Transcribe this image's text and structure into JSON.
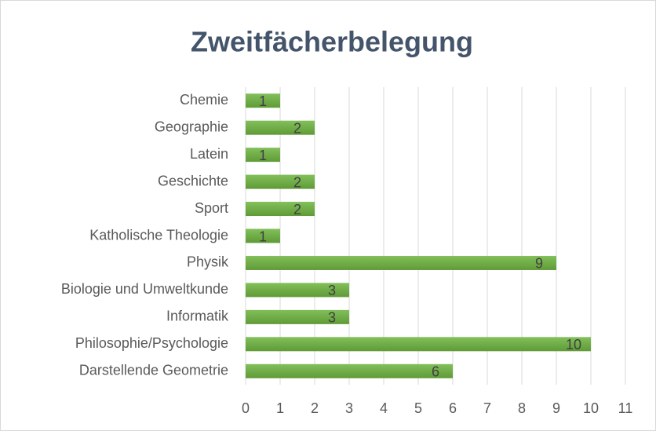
{
  "chart_data": {
    "type": "bar",
    "orientation": "horizontal",
    "title": "Zweitfächerbelegung",
    "categories": [
      "Chemie",
      "Geographie",
      "Latein",
      "Geschichte",
      "Sport",
      "Katholische Theologie",
      "Physik",
      "Biologie und Umweltkunde",
      "Informatik",
      "Philosophie/Psychologie",
      "Darstellende Geometrie"
    ],
    "values": [
      1,
      2,
      1,
      2,
      2,
      1,
      9,
      3,
      3,
      10,
      6
    ],
    "color": "#70ad47",
    "xlim": [
      0,
      11
    ],
    "xticks": [
      0,
      1,
      2,
      3,
      4,
      5,
      6,
      7,
      8,
      9,
      10,
      11
    ],
    "grid": true
  }
}
